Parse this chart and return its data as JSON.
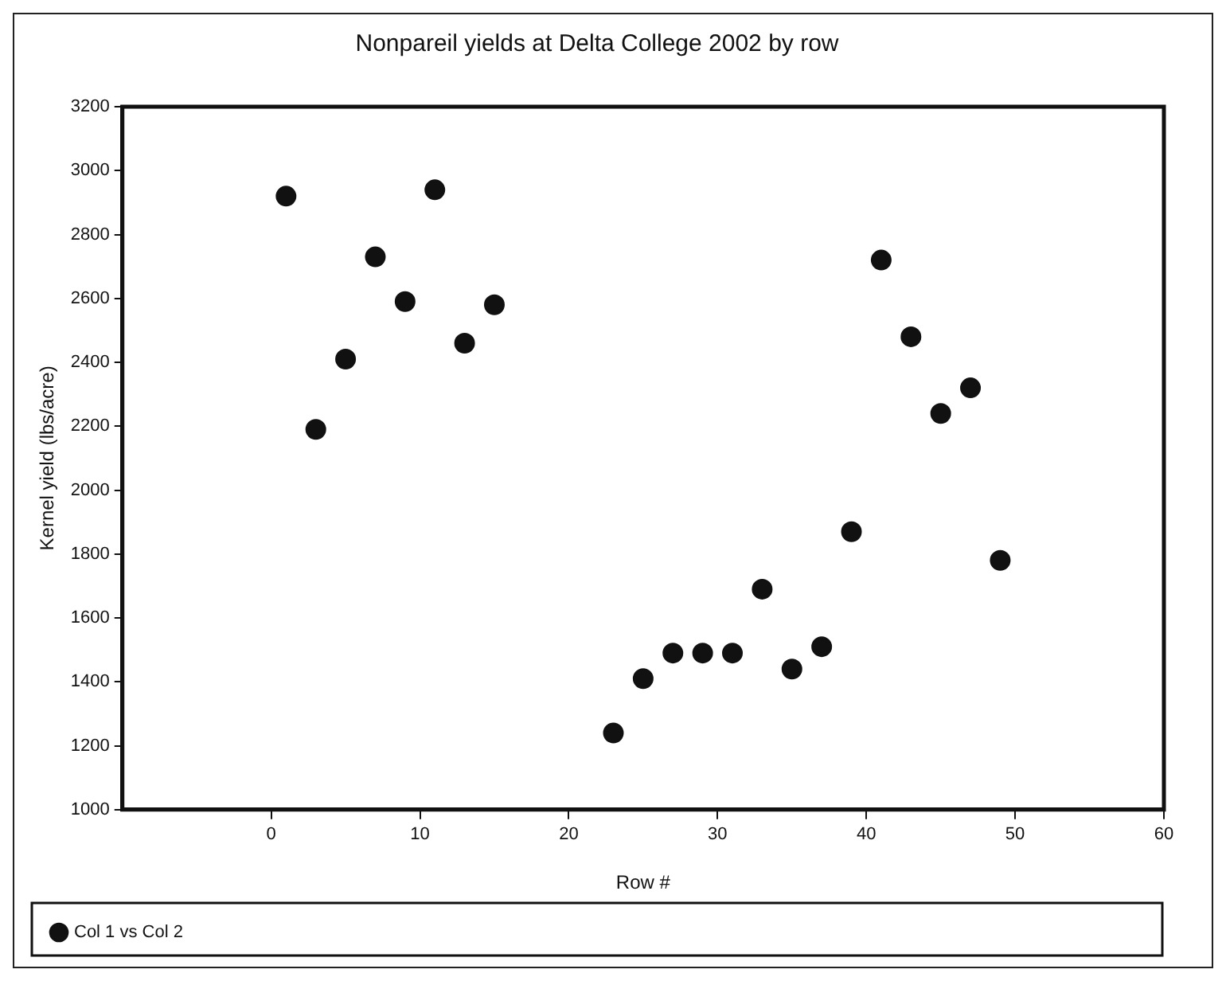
{
  "chart_data": {
    "type": "scatter",
    "title": "Nonpareil yields at Delta College 2002 by row",
    "xlabel": "Row #",
    "ylabel": "Kernel yield (lbs/acre)",
    "series": [
      {
        "name": "Col 1 vs Col 2",
        "color": "#111111",
        "x": [
          1,
          3,
          5,
          7,
          9,
          11,
          13,
          15,
          23,
          25,
          27,
          29,
          31,
          33,
          35,
          37,
          39,
          41,
          43,
          45,
          47,
          49
        ],
        "values": [
          2920,
          2190,
          2410,
          2730,
          2590,
          2940,
          2460,
          2580,
          1240,
          1410,
          1490,
          1490,
          1490,
          1690,
          1440,
          1510,
          1870,
          2720,
          2480,
          2240,
          2320,
          1780
        ]
      }
    ],
    "xlim": [
      -10,
      60
    ],
    "xticks": [
      0,
      10,
      20,
      30,
      40,
      50,
      60
    ],
    "ylim": [
      1000,
      3200
    ],
    "yticks": [
      1000,
      1200,
      1400,
      1600,
      1800,
      2000,
      2200,
      2400,
      2600,
      2800,
      3000,
      3200
    ],
    "grid": false,
    "legend": "bottom left",
    "marker": "circle"
  }
}
